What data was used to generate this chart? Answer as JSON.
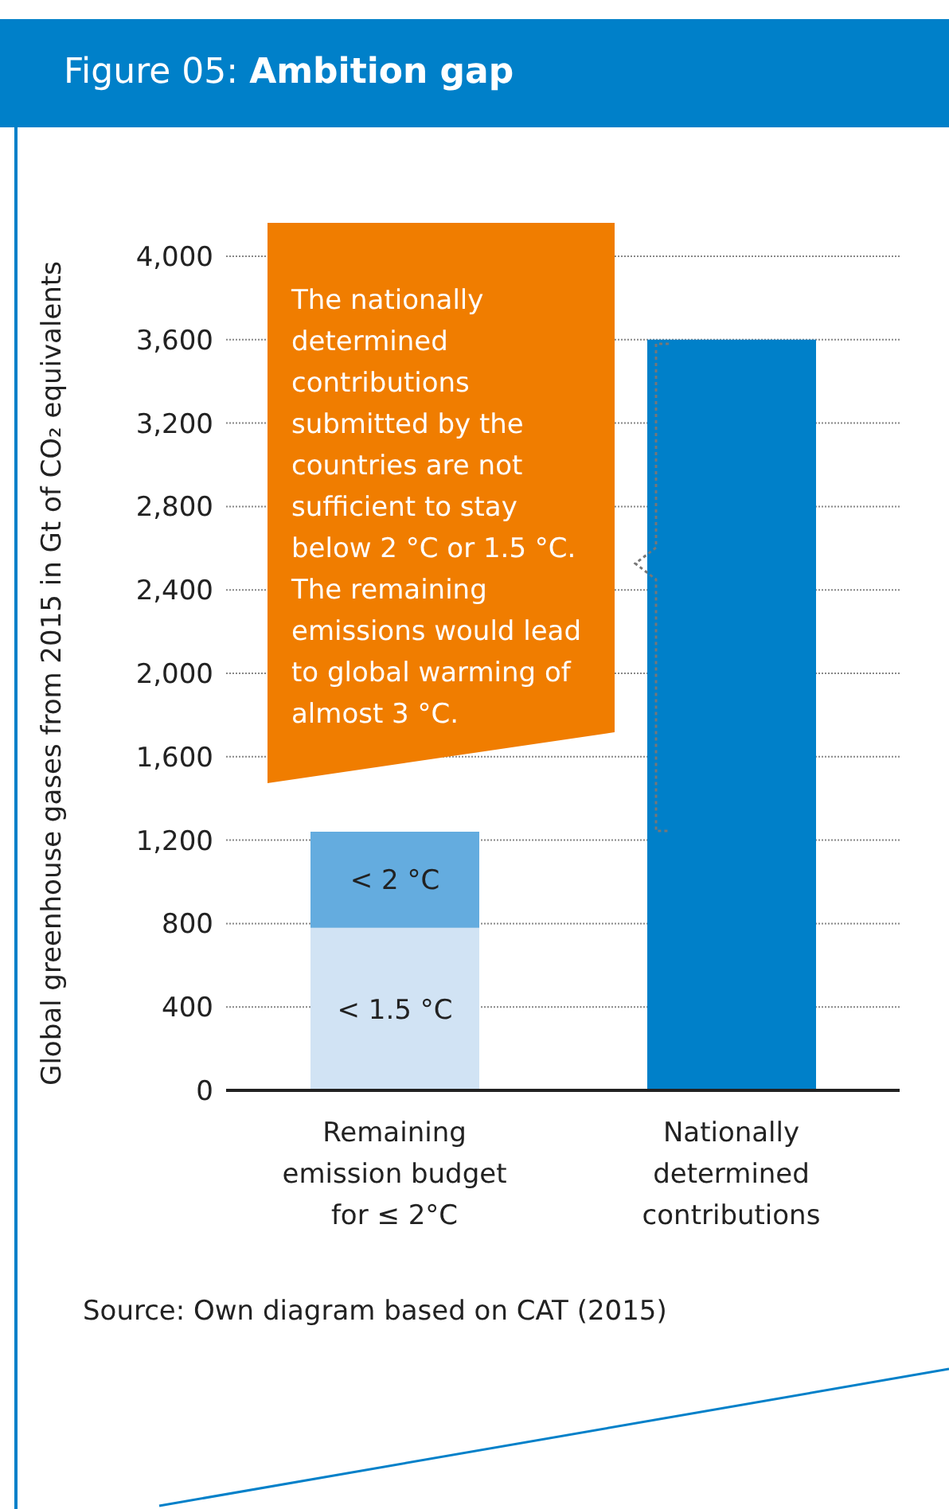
{
  "chart_data": {
    "type": "bar",
    "title": "Figure 05: Ambition gap",
    "ylabel": "Global greenhouse gases from 2015 in Gt of CO₂ equivalents",
    "categories": [
      "Remaining emission budget for ≤ 2°C",
      "Nationally determined contributions"
    ],
    "stacked": true,
    "series": [
      {
        "name": "< 1.5 °C",
        "color": "#d1e3f4",
        "values": [
          780,
          null
        ]
      },
      {
        "name": "< 2 °C",
        "color": "#64acdf",
        "values": [
          460,
          null
        ]
      },
      {
        "color": "#0080c9",
        "values": [
          null,
          3600
        ]
      }
    ],
    "ylim": [
      0,
      4000
    ],
    "yticks": [
      {
        "value": 0,
        "label": "0"
      },
      {
        "value": 400,
        "label": "400"
      },
      {
        "value": 800,
        "label": "800"
      },
      {
        "value": 1200,
        "label": "1,200"
      },
      {
        "value": 1600,
        "label": "1,600"
      },
      {
        "value": 2000,
        "label": "2,000"
      },
      {
        "value": 2400,
        "label": "2,400"
      },
      {
        "value": 2800,
        "label": "2,800"
      },
      {
        "value": 3200,
        "label": "3,200"
      },
      {
        "value": 3600,
        "label": "3,600"
      },
      {
        "value": 4000,
        "label": "4,000"
      }
    ],
    "grid": "y",
    "legend": false,
    "annotations": [
      "The nationally determined contributions submitted by the countries are not sufficient to stay below 2 °C or 1.5 °C. The remaining emissions would lead to global warming of almost 3 °C.",
      "Source: Own diagram based on CAT (2015)"
    ]
  }
}
